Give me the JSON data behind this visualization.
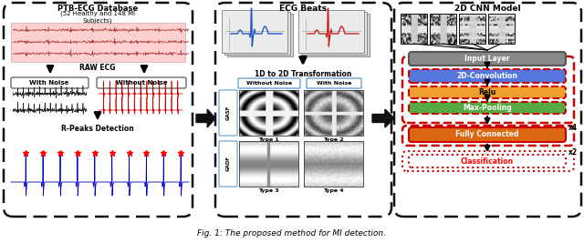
{
  "title": "Fig. 1: The proposed method for MI detection.",
  "background_color": "#ffffff",
  "panel1_title_line1": "PTB-ECG Database",
  "panel1_title_line2": "(52 Healthy and 148 MI",
  "panel1_title_line3": "Subjects)",
  "panel2_title": "ECG Beats",
  "panel3_title": "2D CNN Model",
  "panel3_layer_names": [
    "Input Layer",
    "2D-Convolution",
    "Relu",
    "Max-Pooling",
    "Fully Connected",
    "Classification"
  ],
  "panel3_layer_colors": [
    "#888888",
    "#5577dd",
    "#f0a030",
    "#55aa44",
    "#dd6611",
    "#ffffff"
  ],
  "panel3_layer_text_colors": [
    "white",
    "white",
    "black",
    "white",
    "white",
    "red"
  ],
  "red_color": "#dd0000",
  "arrow_color": "#111111",
  "panel_border_color": "#111111"
}
